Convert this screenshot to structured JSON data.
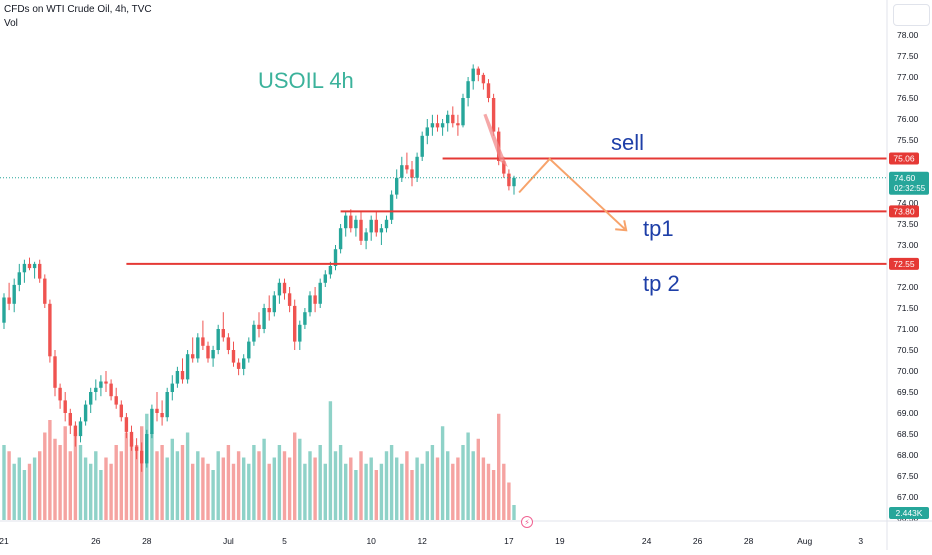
{
  "header": {
    "symbol_line": "CFDs on WTI Crude Oil, 4h, TVC",
    "vol_label": "Vol"
  },
  "annotations": {
    "title": "USOIL 4h",
    "sell": "sell",
    "tp1": "tp1",
    "tp2": "tp 2"
  },
  "colors": {
    "up": "#26a69a",
    "down": "#ef5350",
    "vol_up": "#8fd2c8",
    "vol_down": "#f5a3a1",
    "level_line": "#e53935",
    "annotation_green": "#3bb29b",
    "annotation_blue": "#1e3fa8",
    "path_orange": "#f7a36b",
    "arrow_pink": "#f28b8b"
  },
  "chart_data": {
    "type": "candlestick",
    "y_axis": {
      "min": 66.5,
      "max": 78.25,
      "ticks": [
        "78.00",
        "77.50",
        "77.00",
        "76.50",
        "76.00",
        "75.50",
        "75.00",
        "74.50",
        "74.00",
        "73.50",
        "73.00",
        "72.50",
        "72.00",
        "71.50",
        "71.00",
        "70.50",
        "70.00",
        "69.50",
        "69.00",
        "68.50",
        "68.00",
        "67.50",
        "67.00",
        "66.50"
      ]
    },
    "x_axis": {
      "ticks": [
        {
          "label": "21",
          "bar": 0
        },
        {
          "label": "26",
          "bar": 18
        },
        {
          "label": "28",
          "bar": 28
        },
        {
          "label": "Jul",
          "bar": 44
        },
        {
          "label": "5",
          "bar": 55
        },
        {
          "label": "10",
          "bar": 72
        },
        {
          "label": "12",
          "bar": 82
        },
        {
          "label": "17",
          "bar": 99
        },
        {
          "label": "19",
          "bar": 109
        },
        {
          "label": "24",
          "bar": 126
        },
        {
          "label": "26",
          "bar": 136
        },
        {
          "label": "28",
          "bar": 146
        },
        {
          "label": "Aug",
          "bar": 157
        },
        {
          "label": "3",
          "bar": 168
        }
      ]
    },
    "price_labels": [
      {
        "value": 75.06,
        "label": "75.06",
        "color": "#e53935"
      },
      {
        "value": 73.8,
        "label": "73.80",
        "color": "#e53935"
      },
      {
        "value": 72.55,
        "label": "72.55",
        "color": "#e53935"
      }
    ],
    "current_price": {
      "value": 74.6,
      "label": "74.60",
      "countdown": "02:32:55",
      "color": "#26a69a"
    },
    "volume_label": {
      "label": "2.443K",
      "color": "#26a69a"
    },
    "levels": [
      {
        "name": "sell",
        "value": 75.06,
        "from_bar": 86
      },
      {
        "name": "tp1",
        "value": 73.8,
        "from_bar": 66
      },
      {
        "name": "tp2",
        "value": 72.55,
        "from_bar": 24
      }
    ],
    "projection_path": [
      {
        "bar": 101,
        "value": 74.25
      },
      {
        "bar": 107,
        "value": 75.05
      },
      {
        "bar": 122,
        "value": 73.35
      }
    ],
    "candles": [
      [
        71.15,
        71.85,
        71.0,
        71.75
      ],
      [
        71.75,
        72.1,
        71.45,
        71.6
      ],
      [
        71.6,
        72.2,
        71.4,
        72.05
      ],
      [
        72.05,
        72.55,
        71.9,
        72.35
      ],
      [
        72.35,
        72.65,
        72.1,
        72.55
      ],
      [
        72.55,
        72.7,
        72.4,
        72.45
      ],
      [
        72.45,
        72.6,
        72.2,
        72.55
      ],
      [
        72.55,
        72.65,
        72.1,
        72.2
      ],
      [
        72.2,
        72.3,
        71.5,
        71.6
      ],
      [
        71.6,
        71.7,
        70.2,
        70.35
      ],
      [
        70.35,
        70.5,
        69.4,
        69.6
      ],
      [
        69.6,
        69.7,
        69.1,
        69.3
      ],
      [
        69.3,
        69.5,
        68.8,
        69.0
      ],
      [
        69.0,
        69.1,
        68.5,
        68.7
      ],
      [
        68.7,
        68.8,
        68.2,
        68.45
      ],
      [
        68.45,
        68.9,
        68.3,
        68.8
      ],
      [
        68.8,
        69.3,
        68.7,
        69.2
      ],
      [
        69.2,
        69.6,
        69.0,
        69.5
      ],
      [
        69.5,
        69.8,
        69.3,
        69.6
      ],
      [
        69.6,
        69.9,
        69.4,
        69.75
      ],
      [
        69.75,
        70.0,
        69.5,
        69.7
      ],
      [
        69.7,
        69.8,
        69.3,
        69.4
      ],
      [
        69.4,
        69.6,
        69.1,
        69.2
      ],
      [
        69.2,
        69.3,
        68.8,
        68.9
      ],
      [
        68.9,
        69.0,
        68.4,
        68.55
      ],
      [
        68.55,
        68.7,
        68.1,
        68.2
      ],
      [
        68.2,
        68.4,
        67.9,
        68.1
      ],
      [
        68.1,
        68.3,
        67.6,
        67.8
      ],
      [
        67.8,
        68.6,
        67.7,
        68.5
      ],
      [
        68.5,
        69.2,
        68.4,
        69.1
      ],
      [
        69.1,
        69.5,
        68.8,
        69.0
      ],
      [
        69.0,
        69.3,
        68.7,
        68.9
      ],
      [
        68.9,
        69.6,
        68.8,
        69.5
      ],
      [
        69.5,
        69.9,
        69.3,
        69.7
      ],
      [
        69.7,
        70.1,
        69.6,
        70.0
      ],
      [
        70.0,
        70.3,
        69.7,
        69.8
      ],
      [
        69.8,
        70.5,
        69.7,
        70.4
      ],
      [
        70.4,
        70.8,
        70.2,
        70.3
      ],
      [
        70.3,
        70.9,
        70.2,
        70.8
      ],
      [
        70.8,
        71.2,
        70.5,
        70.6
      ],
      [
        70.6,
        70.7,
        70.2,
        70.3
      ],
      [
        70.3,
        70.6,
        70.1,
        70.5
      ],
      [
        70.5,
        71.1,
        70.4,
        71.0
      ],
      [
        71.0,
        71.4,
        70.7,
        70.8
      ],
      [
        70.8,
        70.9,
        70.4,
        70.5
      ],
      [
        70.5,
        70.7,
        70.1,
        70.2
      ],
      [
        70.2,
        70.3,
        69.9,
        70.05
      ],
      [
        70.05,
        70.4,
        69.9,
        70.3
      ],
      [
        70.3,
        70.8,
        70.2,
        70.7
      ],
      [
        70.7,
        71.2,
        70.6,
        71.1
      ],
      [
        71.1,
        71.4,
        70.8,
        71.0
      ],
      [
        71.0,
        71.6,
        70.9,
        71.5
      ],
      [
        71.5,
        71.8,
        71.2,
        71.4
      ],
      [
        71.4,
        71.9,
        71.3,
        71.8
      ],
      [
        71.8,
        72.2,
        71.6,
        72.1
      ],
      [
        72.1,
        72.2,
        71.7,
        71.85
      ],
      [
        71.85,
        72.0,
        71.4,
        71.55
      ],
      [
        71.55,
        71.7,
        70.5,
        70.7
      ],
      [
        70.7,
        71.2,
        70.5,
        71.1
      ],
      [
        71.1,
        71.5,
        71.0,
        71.4
      ],
      [
        71.4,
        71.9,
        71.3,
        71.8
      ],
      [
        71.8,
        72.0,
        71.4,
        71.6
      ],
      [
        71.6,
        72.2,
        71.5,
        72.1
      ],
      [
        72.1,
        72.4,
        72.0,
        72.3
      ],
      [
        72.3,
        72.6,
        72.2,
        72.5
      ],
      [
        72.5,
        73.0,
        72.4,
        72.9
      ],
      [
        72.9,
        73.5,
        72.8,
        73.4
      ],
      [
        73.4,
        73.8,
        73.2,
        73.7
      ],
      [
        73.7,
        73.85,
        73.3,
        73.4
      ],
      [
        73.4,
        73.7,
        73.2,
        73.6
      ],
      [
        73.6,
        73.8,
        73.0,
        73.1
      ],
      [
        73.1,
        73.4,
        72.9,
        73.3
      ],
      [
        73.3,
        73.7,
        73.1,
        73.6
      ],
      [
        73.6,
        73.8,
        73.2,
        73.3
      ],
      [
        73.3,
        73.5,
        73.0,
        73.4
      ],
      [
        73.4,
        73.7,
        73.3,
        73.6
      ],
      [
        73.6,
        74.3,
        73.5,
        74.2
      ],
      [
        74.2,
        74.8,
        74.1,
        74.6
      ],
      [
        74.6,
        75.1,
        74.5,
        74.9
      ],
      [
        74.9,
        75.2,
        74.7,
        74.8
      ],
      [
        74.8,
        75.0,
        74.4,
        74.6
      ],
      [
        74.6,
        75.2,
        74.5,
        75.1
      ],
      [
        75.1,
        75.7,
        75.0,
        75.6
      ],
      [
        75.6,
        76.0,
        75.4,
        75.8
      ],
      [
        75.8,
        76.1,
        75.6,
        75.9
      ],
      [
        75.9,
        76.1,
        75.7,
        75.8
      ],
      [
        75.8,
        76.0,
        75.6,
        75.9
      ],
      [
        75.9,
        76.2,
        75.7,
        76.1
      ],
      [
        76.1,
        76.3,
        75.8,
        75.9
      ],
      [
        75.9,
        76.1,
        75.6,
        75.85
      ],
      [
        75.85,
        76.6,
        75.8,
        76.5
      ],
      [
        76.5,
        77.0,
        76.3,
        76.9
      ],
      [
        76.9,
        77.3,
        76.7,
        77.2
      ],
      [
        77.2,
        77.25,
        76.9,
        77.05
      ],
      [
        77.05,
        77.1,
        76.7,
        76.85
      ],
      [
        76.85,
        76.95,
        76.4,
        76.5
      ],
      [
        76.5,
        76.6,
        75.6,
        75.7
      ],
      [
        75.7,
        75.8,
        74.9,
        75.0
      ],
      [
        75.0,
        75.1,
        74.6,
        74.7
      ],
      [
        74.7,
        74.8,
        74.3,
        74.4
      ],
      [
        74.4,
        74.65,
        74.2,
        74.6
      ]
    ],
    "volumes": [
      0.6,
      0.55,
      0.45,
      0.5,
      0.4,
      0.45,
      0.5,
      0.55,
      0.7,
      0.8,
      0.65,
      0.6,
      0.75,
      0.55,
      0.7,
      0.6,
      0.5,
      0.45,
      0.55,
      0.4,
      0.5,
      0.45,
      0.6,
      0.55,
      0.7,
      0.65,
      0.6,
      0.75,
      0.85,
      0.7,
      0.55,
      0.6,
      0.5,
      0.65,
      0.55,
      0.6,
      0.7,
      0.45,
      0.55,
      0.5,
      0.45,
      0.4,
      0.55,
      0.5,
      0.6,
      0.45,
      0.55,
      0.5,
      0.45,
      0.6,
      0.55,
      0.65,
      0.45,
      0.5,
      0.6,
      0.55,
      0.5,
      0.7,
      0.65,
      0.45,
      0.55,
      0.5,
      0.6,
      0.45,
      0.95,
      0.55,
      0.6,
      0.45,
      0.5,
      0.4,
      0.55,
      0.45,
      0.5,
      0.4,
      0.45,
      0.55,
      0.6,
      0.5,
      0.45,
      0.55,
      0.4,
      0.5,
      0.45,
      0.55,
      0.6,
      0.5,
      0.75,
      0.55,
      0.45,
      0.5,
      0.6,
      0.7,
      0.55,
      0.65,
      0.5,
      0.45,
      0.4,
      0.85,
      0.45,
      0.3,
      0.12
    ]
  }
}
